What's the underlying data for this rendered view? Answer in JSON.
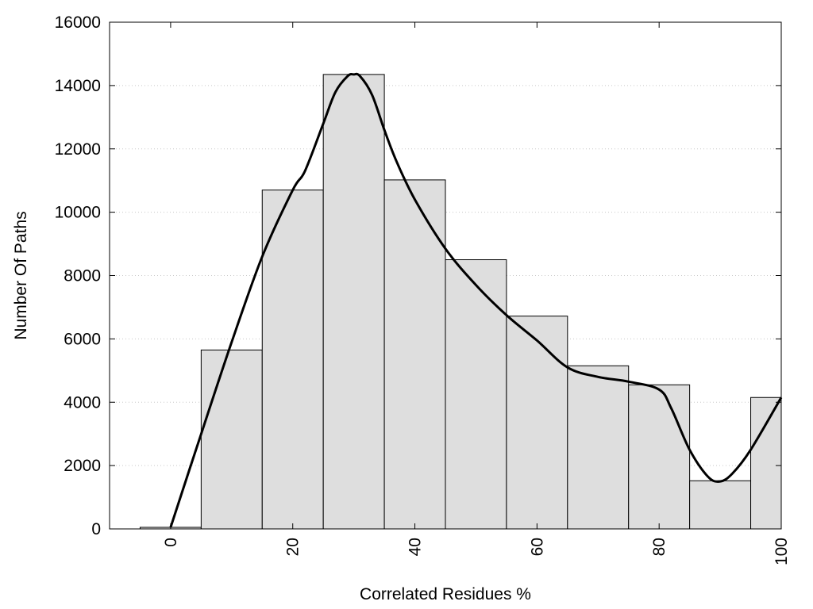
{
  "chart_data": {
    "type": "bar",
    "title": "",
    "xlabel": "Correlated Residues %",
    "ylabel": "Number Of Paths",
    "xlim": [
      -10,
      100
    ],
    "ylim": [
      0,
      16000
    ],
    "bin_width": 10,
    "grid": {
      "y": true,
      "x": false,
      "style": "dotted"
    },
    "bar_color": "#dedede",
    "curve_color": "#000000",
    "x_ticks": [
      0,
      20,
      40,
      60,
      80,
      100
    ],
    "y_ticks": [
      0,
      2000,
      4000,
      6000,
      8000,
      10000,
      12000,
      14000,
      16000
    ],
    "bars": [
      {
        "x": 0,
        "value": 50
      },
      {
        "x": 10,
        "value": 5650
      },
      {
        "x": 20,
        "value": 10700
      },
      {
        "x": 30,
        "value": 14350
      },
      {
        "x": 40,
        "value": 11020
      },
      {
        "x": 50,
        "value": 8500
      },
      {
        "x": 60,
        "value": 6720
      },
      {
        "x": 70,
        "value": 5150
      },
      {
        "x": 80,
        "value": 4550
      },
      {
        "x": 90,
        "value": 1520
      },
      {
        "x": 100,
        "value": 4150
      }
    ],
    "curve": {
      "x": [
        0,
        5,
        10,
        15,
        20,
        22,
        25,
        27,
        29,
        30,
        31,
        33,
        35,
        37,
        40,
        45,
        50,
        55,
        60,
        65,
        70,
        75,
        80,
        82,
        85,
        88,
        90,
        92,
        95,
        100
      ],
      "y": [
        50,
        3000,
        5900,
        8600,
        10700,
        11300,
        12800,
        13800,
        14300,
        14350,
        14300,
        13700,
        12600,
        11600,
        10400,
        8850,
        7700,
        6750,
        5950,
        5100,
        4800,
        4650,
        4400,
        3800,
        2500,
        1650,
        1500,
        1750,
        2500,
        4150
      ]
    }
  }
}
